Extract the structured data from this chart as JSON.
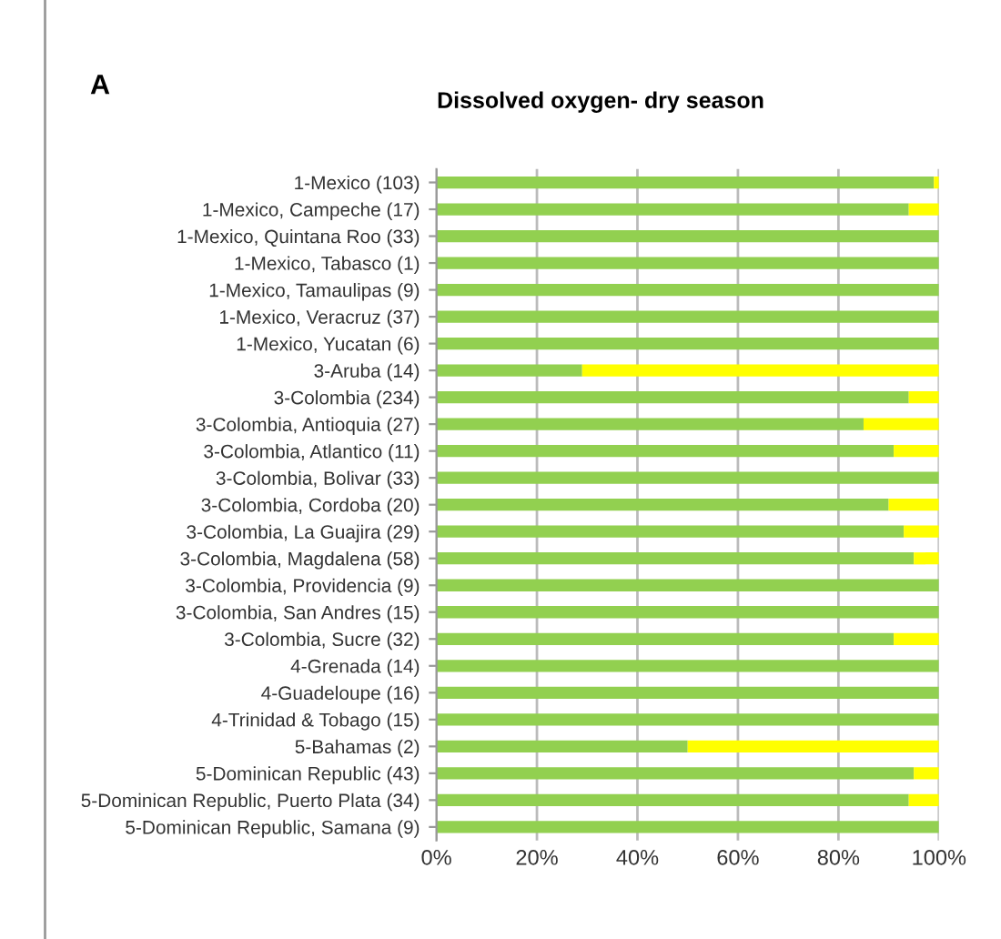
{
  "chart_data": {
    "type": "bar",
    "orientation": "horizontal",
    "stacked": true,
    "title": "Dissolved oxygen- dry season",
    "annotations": [
      "A"
    ],
    "categories": [
      "1-Mexico (103)",
      "1-Mexico, Campeche (17)",
      "1-Mexico, Quintana Roo (33)",
      "1-Mexico, Tabasco (1)",
      "1-Mexico, Tamaulipas (9)",
      "1-Mexico, Veracruz (37)",
      "1-Mexico, Yucatan (6)",
      "3-Aruba (14)",
      "3-Colombia (234)",
      "3-Colombia, Antioquia (27)",
      "3-Colombia, Atlantico (11)",
      "3-Colombia, Bolivar (33)",
      "3-Colombia, Cordoba (20)",
      "3-Colombia, La Guajira (29)",
      "3-Colombia, Magdalena (58)",
      "3-Colombia, Providencia (9)",
      "3-Colombia, San Andres (15)",
      "3-Colombia, Sucre (32)",
      "4-Grenada (14)",
      "4-Guadeloupe (16)",
      "4-Trinidad & Tobago (15)",
      "5-Bahamas (2)",
      "5-Dominican Republic (43)",
      "5-Dominican Republic, Puerto Plata (34)",
      "5-Dominican Republic, Samana (9)"
    ],
    "series": [
      {
        "color": "#92d050",
        "values": [
          99,
          94,
          100,
          100,
          100,
          100,
          100,
          29,
          94,
          85,
          91,
          100,
          90,
          93,
          95,
          100,
          100,
          91,
          100,
          100,
          100,
          50,
          95,
          94,
          100
        ]
      },
      {
        "color": "#ffff00",
        "values": [
          1,
          6,
          0,
          0,
          0,
          0,
          0,
          71,
          6,
          15,
          9,
          0,
          10,
          7,
          5,
          0,
          0,
          9,
          0,
          0,
          0,
          50,
          5,
          6,
          0
        ]
      }
    ],
    "xlim": [
      0,
      100
    ],
    "xticks": [
      {
        "value": 0,
        "label": "0%"
      },
      {
        "value": 20,
        "label": "20%"
      },
      {
        "value": 40,
        "label": "40%"
      },
      {
        "value": 60,
        "label": "60%"
      },
      {
        "value": 80,
        "label": "80%"
      },
      {
        "value": 100,
        "label": "100%"
      }
    ],
    "grid": "x"
  }
}
